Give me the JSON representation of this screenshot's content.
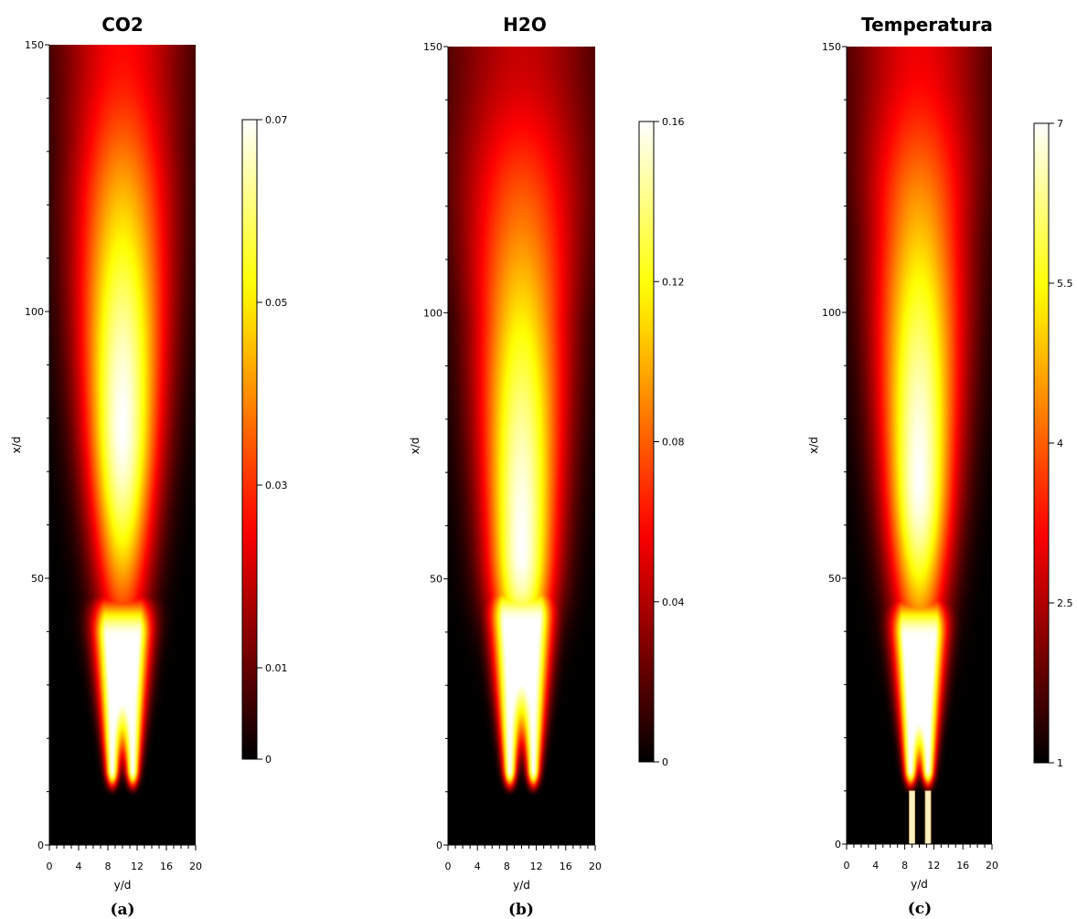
{
  "chart_data": [
    {
      "type": "heatmap",
      "title": "CO2",
      "caption": "(a)",
      "xlabel": "y/d",
      "ylabel": "x/d",
      "xlim": [
        0,
        20
      ],
      "ylim": [
        0,
        150
      ],
      "x_ticks": [
        "0",
        "4",
        "8",
        "12",
        "16",
        "20"
      ],
      "y_ticks": [
        "0",
        "50",
        "100",
        "150"
      ],
      "colorbar": {
        "min": 0,
        "max": 0.07,
        "ticks": [
          "0",
          "0.01",
          "0.03",
          "0.05",
          "0.07"
        ],
        "tick_values": [
          0,
          0.01,
          0.03,
          0.05,
          0.07
        ],
        "colormap": "hot"
      },
      "field": {
        "jets_y": [
          8.6,
          11.4
        ],
        "jet_start_x": 10,
        "merge_x": 45,
        "peak_x": 78,
        "peak_spread": 3.6,
        "far_level": 0.45,
        "inner_dark": false
      }
    },
    {
      "type": "heatmap",
      "title": "H2O",
      "caption": "(b)",
      "xlabel": "y/d",
      "ylabel": "x/d",
      "xlim": [
        0,
        20
      ],
      "ylim": [
        0,
        150
      ],
      "x_ticks": [
        "0",
        "4",
        "8",
        "12",
        "16",
        "20"
      ],
      "y_ticks": [
        "0",
        "50",
        "100",
        "150"
      ],
      "colorbar": {
        "min": 0,
        "max": 0.16,
        "ticks": [
          "0",
          "0.04",
          "0.08",
          "0.12",
          "0.16"
        ],
        "tick_values": [
          0,
          0.04,
          0.08,
          0.12,
          0.16
        ],
        "colormap": "hot"
      },
      "field": {
        "jets_y": [
          8.4,
          11.6
        ],
        "jet_start_x": 10,
        "merge_x": 48,
        "peak_x": 55,
        "peak_spread": 3.3,
        "far_level": 0.36,
        "inner_dark": true
      }
    },
    {
      "type": "heatmap",
      "title": "Temperatura",
      "caption": "(c)",
      "xlabel": "y/d",
      "ylabel": "x/d",
      "xlim": [
        0,
        20
      ],
      "ylim": [
        0,
        150
      ],
      "x_ticks": [
        "0",
        "4",
        "8",
        "12",
        "16",
        "20"
      ],
      "y_ticks": [
        "0",
        "50",
        "100",
        "150"
      ],
      "colorbar": {
        "min": 1,
        "max": 7,
        "ticks": [
          "1",
          "2.5",
          "4",
          "5.5",
          "7"
        ],
        "tick_values": [
          1,
          2.5,
          4,
          5.5,
          7
        ],
        "colormap": "hot"
      },
      "field": {
        "jets_y": [
          8.8,
          11.2
        ],
        "jet_start_x": 10,
        "merge_x": 45,
        "peak_x": 68,
        "peak_spread": 3.4,
        "far_level": 0.42,
        "inner_dark": false,
        "nozzles": {
          "y": [
            9.0,
            11.2
          ],
          "x_top": 10
        }
      }
    }
  ]
}
